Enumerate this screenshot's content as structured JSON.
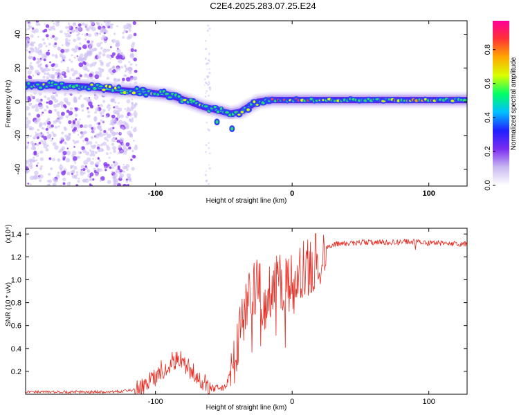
{
  "title": "C2E4.2025.283.07.25.E24",
  "chart_data": [
    {
      "type": "heatmap",
      "title": "C2E4.2025.283.07.25.E24",
      "xlabel": "Height of straight line (km)",
      "ylabel": "Frequency (Hz)",
      "xlim": [
        -195,
        128
      ],
      "ylim": [
        -50,
        48
      ],
      "xticks": [
        -100,
        0,
        100
      ],
      "yticks": [
        -40,
        -20,
        0,
        20,
        40
      ],
      "colorbar": {
        "label": "Normalized spectral amplitude",
        "range": [
          0.0,
          0.97
        ],
        "ticks": [
          0.0,
          0.2,
          0.4,
          0.6,
          0.8
        ],
        "colors": [
          "#ffffff",
          "#c9b8f0",
          "#7a2cf0",
          "#2020ff",
          "#00bfff",
          "#00ff66",
          "#d8ff00",
          "#ffaa00",
          "#ff3333",
          "#ff0099"
        ]
      },
      "ridge": {
        "x": [
          -195,
          -150,
          -130,
          -110,
          -90,
          -75,
          -65,
          -55,
          -45,
          -38,
          -32,
          -25,
          -15,
          0,
          20,
          60,
          128
        ],
        "freq_hz": [
          10,
          9,
          7,
          6,
          4,
          0,
          -3,
          -5,
          -7,
          -6,
          -3,
          0,
          1,
          1,
          1,
          1,
          1
        ]
      },
      "noise_region_x": [
        -195,
        -120
      ]
    },
    {
      "type": "line",
      "xlabel": "Height of straight line (km)",
      "ylabel": "SNR (10 * v/v)",
      "y_multiplier": "(x10⁴)",
      "xlim": [
        -195,
        128
      ],
      "ylim": [
        0,
        1.45
      ],
      "xticks": [
        -100,
        0,
        100
      ],
      "yticks": [
        0.2,
        0.4,
        0.6,
        0.8,
        1.0,
        1.2,
        1.4
      ],
      "color": "#e8281e",
      "series": [
        {
          "name": "SNR",
          "x": [
            -195,
            -150,
            -130,
            -115,
            -105,
            -95,
            -88,
            -80,
            -75,
            -70,
            -65,
            -58,
            -52,
            -48,
            -44,
            -40,
            -36,
            -32,
            -28,
            -25,
            -22,
            -20,
            -18,
            -15,
            -12,
            -8,
            -4,
            0,
            4,
            8,
            12,
            16,
            20,
            25,
            30,
            40,
            60,
            80,
            90,
            100,
            110,
            128
          ],
          "y": [
            0.02,
            0.02,
            0.02,
            0.04,
            0.1,
            0.22,
            0.28,
            0.3,
            0.22,
            0.15,
            0.1,
            0.05,
            0.05,
            0.08,
            0.25,
            0.45,
            0.62,
            0.8,
            0.9,
            0.95,
            0.88,
            0.8,
            0.86,
            0.88,
            0.93,
            0.97,
            0.98,
            1.0,
            1.02,
            1.07,
            1.12,
            1.18,
            1.23,
            1.28,
            1.31,
            1.32,
            1.33,
            1.33,
            1.33,
            1.32,
            1.32,
            1.31
          ]
        }
      ]
    }
  ]
}
